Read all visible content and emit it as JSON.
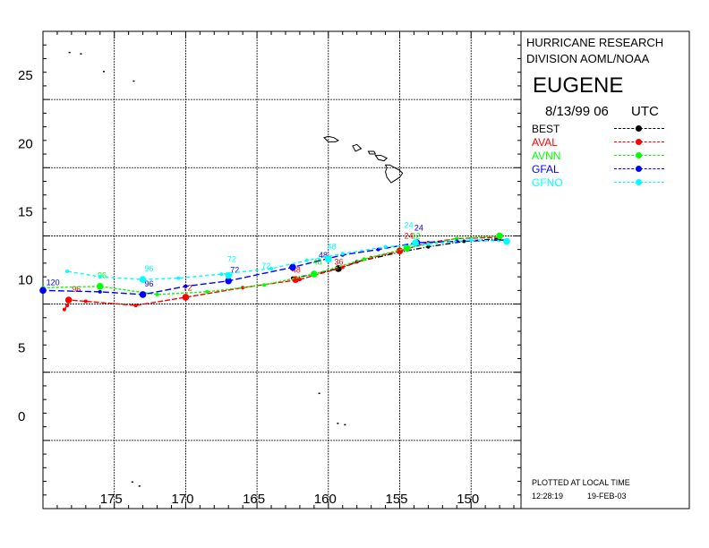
{
  "header": {
    "org_line1": "HURRICANE RESEARCH",
    "org_line2": "DIVISION AOML/NOAA",
    "storm_name": "EUGENE",
    "datetime": "8/13/99 06",
    "tz": "UTC"
  },
  "footer": {
    "note": "PLOTTED AT LOCAL TIME",
    "time": "12:28:19",
    "date": "19-FEB-03"
  },
  "chart_data": {
    "type": "line",
    "title": "",
    "xlabel": "",
    "ylabel": "",
    "xlim": [
      180,
      146.5
    ],
    "ylim": [
      -5,
      30
    ],
    "x_direction": "reversed (longitude West)",
    "x_ticks": [
      "175",
      "170",
      "165",
      "160",
      "155",
      "150"
    ],
    "x_tick_values": [
      175,
      170,
      165,
      160,
      155,
      150
    ],
    "y_ticks": [
      "0",
      "5",
      "10",
      "15",
      "20",
      "25"
    ],
    "y_tick_values": [
      0,
      5,
      10,
      15,
      20,
      25
    ],
    "grid": true,
    "legend_placement": "right panel",
    "series": [
      {
        "name": "BEST",
        "color": "#000000",
        "points": [
          [
            148,
            14.8
          ],
          [
            150.5,
            14.6
          ],
          [
            153,
            14.2
          ],
          [
            155,
            13.8
          ],
          [
            158,
            13.1
          ],
          [
            159.3,
            12.6
          ],
          [
            161,
            12.2
          ],
          [
            162.5,
            11.9
          ]
        ],
        "markers": [
          [
            159.3,
            12.6
          ]
        ],
        "labels": []
      },
      {
        "name": "AVAL",
        "color": "#ff0000",
        "points": [
          [
            148,
            14.9
          ],
          [
            151,
            14.8
          ],
          [
            153,
            14.5
          ],
          [
            155,
            13.9
          ],
          [
            157,
            13.4
          ],
          [
            159,
            12.7
          ],
          [
            162,
            11.8
          ],
          [
            166,
            11.2
          ],
          [
            170,
            10.5
          ],
          [
            173.5,
            9.9
          ],
          [
            177,
            10.2
          ],
          [
            178.2,
            10.3
          ],
          [
            178.3,
            9.9
          ],
          [
            178.5,
            9.6
          ]
        ],
        "markers": [
          [
            155,
            13.9
          ],
          [
            162.3,
            11.8
          ],
          [
            170,
            10.5
          ],
          [
            178.2,
            10.3
          ]
        ],
        "labels": [
          {
            "x": 154.3,
            "y": 14.8,
            "text": "24"
          },
          {
            "x": 159.2,
            "y": 12.9,
            "text": "36"
          },
          {
            "x": 162.2,
            "y": 12.3,
            "text": "48"
          },
          {
            "x": 169.8,
            "y": 11.0,
            "text": "72"
          },
          {
            "x": 177.6,
            "y": 10.9,
            "text": "96"
          }
        ]
      },
      {
        "name": "AVNN",
        "color": "#00ff00",
        "points": [
          [
            148,
            15.0
          ],
          [
            151,
            14.8
          ],
          [
            154.5,
            14.1
          ],
          [
            157.5,
            13.3
          ],
          [
            161,
            12.2
          ],
          [
            164.5,
            11.4
          ],
          [
            168.5,
            10.9
          ],
          [
            172,
            10.7
          ],
          [
            176,
            11.3
          ],
          [
            180,
            11.2
          ]
        ],
        "markers": [
          [
            148,
            15.0
          ],
          [
            154.5,
            14.1
          ],
          [
            161,
            12.2
          ],
          [
            176,
            11.3
          ]
        ],
        "labels": [
          {
            "x": 153.8,
            "y": 14.8,
            "text": "12"
          },
          {
            "x": 160.7,
            "y": 12.9,
            "text": "48"
          },
          {
            "x": 175.8,
            "y": 11.9,
            "text": "96"
          }
        ]
      },
      {
        "name": "GFAL",
        "color": "#0000ff",
        "points": [
          [
            147.5,
            14.7
          ],
          [
            151,
            14.6
          ],
          [
            153.8,
            14.5
          ],
          [
            156.5,
            14.0
          ],
          [
            159,
            13.6
          ],
          [
            162.5,
            12.7
          ],
          [
            167,
            11.7
          ],
          [
            170,
            11.3
          ],
          [
            173,
            10.7
          ],
          [
            176,
            10.9
          ],
          [
            180,
            11.0
          ]
        ],
        "markers": [
          [
            153.8,
            14.5
          ],
          [
            162.5,
            12.7
          ],
          [
            167,
            11.7
          ],
          [
            173,
            10.7
          ],
          [
            180,
            11.0
          ]
        ],
        "labels": [
          {
            "x": 153.6,
            "y": 15.4,
            "text": "24"
          },
          {
            "x": 160.3,
            "y": 13.4,
            "text": "48"
          },
          {
            "x": 166.5,
            "y": 12.3,
            "text": "72"
          },
          {
            "x": 172.5,
            "y": 11.3,
            "text": "96"
          },
          {
            "x": 179.4,
            "y": 11.4,
            "text": "120"
          }
        ]
      },
      {
        "name": "GFNO",
        "color": "#00ffff",
        "points": [
          [
            147.5,
            14.6
          ],
          [
            150,
            14.7
          ],
          [
            153,
            14.4
          ],
          [
            156,
            14.2
          ],
          [
            159,
            13.7
          ],
          [
            161.5,
            13.2
          ],
          [
            164,
            12.6
          ],
          [
            167.5,
            12.2
          ],
          [
            170.5,
            11.9
          ],
          [
            173,
            11.8
          ],
          [
            176,
            12.0
          ],
          [
            178.3,
            12.4
          ]
        ],
        "markers": [
          [
            147.5,
            14.6
          ],
          [
            153.9,
            14.5
          ],
          [
            160,
            13.3
          ],
          [
            167,
            12.1
          ],
          [
            173,
            11.8
          ]
        ],
        "labels": [
          {
            "x": 154.3,
            "y": 15.6,
            "text": "24"
          },
          {
            "x": 159.7,
            "y": 14.0,
            "text": "48"
          },
          {
            "x": 166.7,
            "y": 13.1,
            "text": "72"
          },
          {
            "x": 172.5,
            "y": 12.4,
            "text": "96"
          },
          {
            "x": 164.3,
            "y": 12.6,
            "text": "72"
          }
        ]
      }
    ],
    "islands": [
      [
        [
          160.3,
          22.2
        ],
        [
          160.0,
          22.3
        ],
        [
          159.6,
          22.2
        ],
        [
          159.3,
          22.0
        ],
        [
          159.5,
          21.9
        ],
        [
          160.0,
          21.9
        ],
        [
          160.3,
          22.2
        ]
      ],
      [
        [
          158.3,
          21.6
        ],
        [
          158.0,
          21.7
        ],
        [
          157.7,
          21.4
        ],
        [
          158.1,
          21.2
        ],
        [
          158.3,
          21.6
        ]
      ],
      [
        [
          157.2,
          21.2
        ],
        [
          156.8,
          21.2
        ],
        [
          156.7,
          21.0
        ],
        [
          157.1,
          21.0
        ],
        [
          157.2,
          21.2
        ]
      ],
      [
        [
          156.7,
          20.9
        ],
        [
          156.3,
          20.9
        ],
        [
          155.9,
          20.7
        ],
        [
          156.1,
          20.5
        ],
        [
          156.5,
          20.6
        ],
        [
          156.7,
          20.9
        ]
      ],
      [
        [
          156.0,
          20.2
        ],
        [
          155.7,
          20.2
        ],
        [
          155.0,
          19.8
        ],
        [
          154.8,
          19.6
        ],
        [
          155.0,
          19.3
        ],
        [
          155.6,
          18.9
        ],
        [
          155.9,
          19.3
        ],
        [
          156.0,
          19.7
        ],
        [
          155.9,
          20.0
        ],
        [
          156.0,
          20.2
        ]
      ]
    ],
    "specks": [
      [
        178.2,
        28.5
      ],
      [
        177.4,
        28.4
      ],
      [
        175.8,
        27.1
      ],
      [
        173.7,
        26.4
      ],
      [
        160.7,
        3.5
      ],
      [
        159.4,
        1.3
      ],
      [
        158.9,
        1.2
      ],
      [
        173.8,
        -3.0
      ],
      [
        173.3,
        -3.3
      ]
    ]
  }
}
